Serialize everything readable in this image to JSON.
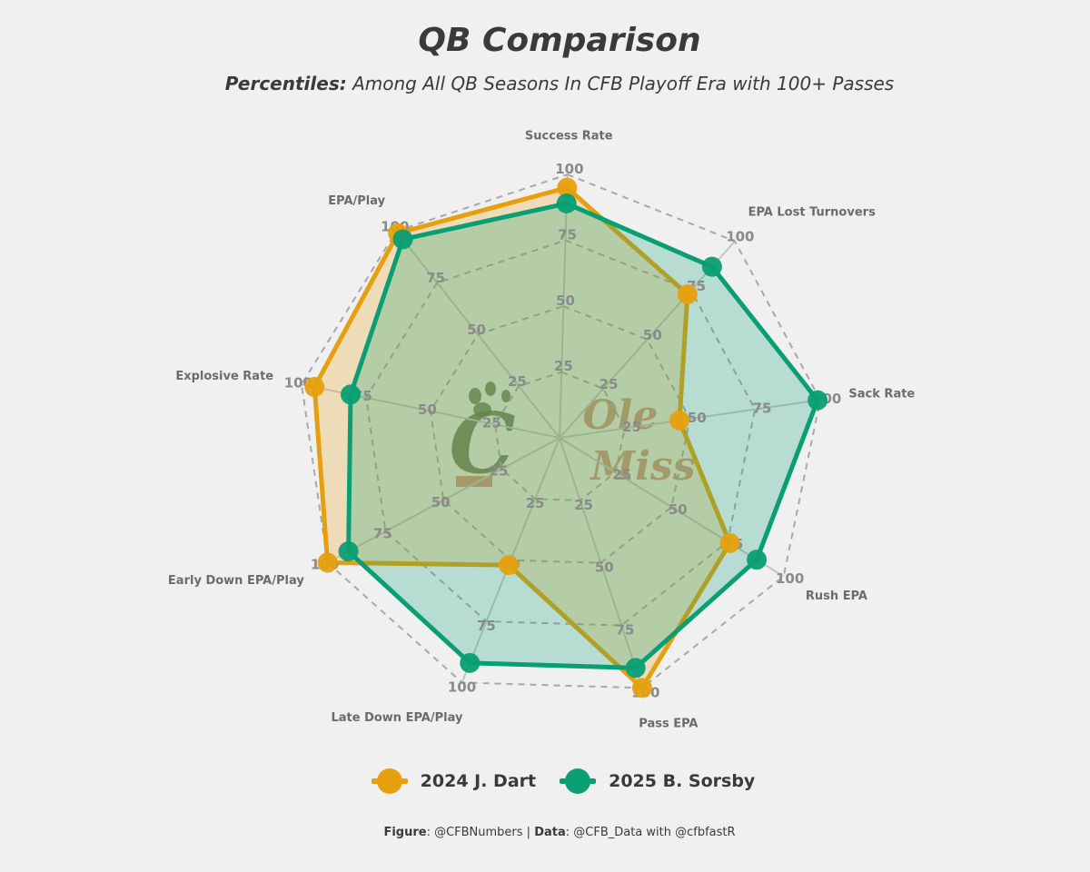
{
  "title": "QB Comparison",
  "subtitle_bold": "Percentiles:",
  "subtitle_rest": "Among All QB Seasons In CFB Playoff Era with 100+ Passes",
  "credit": {
    "figure_label": "Figure",
    "figure_value": ": @CFBNumbers | ",
    "data_label": "Data",
    "data_value": ": @CFB_Data with @cfbfastR"
  },
  "colors": {
    "background": "#f0f0f0",
    "dart": "#e6a00f",
    "sorsby": "#0a9e74",
    "grid": "#a8a8a8",
    "axis_label": "#6b6b6b",
    "tick_label": "#8a8a8a",
    "cincinnati_logo": "#5f6e4f",
    "ole_miss_logo": "#cf8b78"
  },
  "logos": {
    "left": {
      "letter": "C",
      "name": "cincinnati-logo"
    },
    "right": {
      "line1": "Ole",
      "line2": "Miss",
      "name": "ole-miss-logo"
    }
  },
  "chart_data": {
    "type": "radar",
    "title": "QB Comparison",
    "axes": [
      "Success Rate",
      "EPA Lost Turnovers",
      "Sack Rate",
      "Rush EPA",
      "Pass EPA",
      "Late Down EPA/Play",
      "Early Down EPA/Play",
      "Explosive Rate",
      "EPA/Play"
    ],
    "rings": [
      25,
      50,
      75,
      100
    ],
    "range": [
      0,
      100
    ],
    "legend_position": "bottom",
    "series": [
      {
        "name": "2024 J. Dart",
        "color": "#e6a00f",
        "values": [
          95,
          73,
          46,
          76,
          100,
          52,
          100,
          95,
          99
        ]
      },
      {
        "name": "2025 B. Sorsby",
        "color": "#0a9e74",
        "values": [
          89,
          87,
          99,
          88,
          92,
          92,
          91,
          81,
          96
        ]
      }
    ]
  }
}
